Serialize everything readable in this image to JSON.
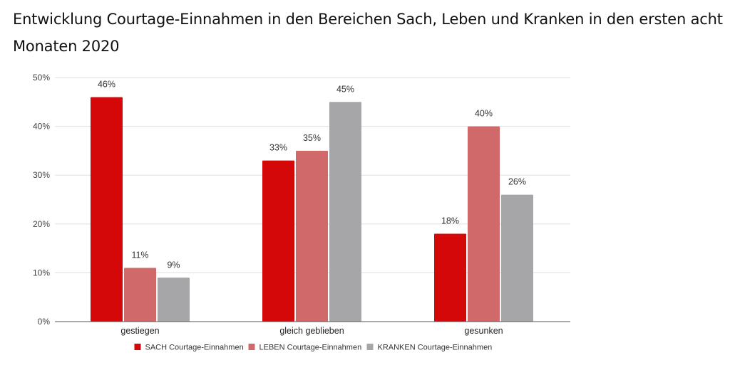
{
  "chart_data": {
    "type": "bar",
    "title": "Entwicklung Courtage-Einnahmen in den Bereichen Sach, Leben und Kranken in den ersten acht Monaten 2020",
    "xlabel": "",
    "ylabel": "",
    "categories": [
      "gestiegen",
      "gleich geblieben",
      "gesunken"
    ],
    "series": [
      {
        "name": "SACH Courtage-Einnahmen",
        "color": "#d40808",
        "values": [
          46,
          33,
          18
        ],
        "labels": [
          "46%",
          "33%",
          "18%"
        ]
      },
      {
        "name": "LEBEN Courtage-Einnahmen",
        "color": "#d06a6a",
        "values": [
          11,
          35,
          40
        ],
        "labels": [
          "11%",
          "35%",
          "40%"
        ]
      },
      {
        "name": "KRANKEN Courtage-Einnahmen",
        "color": "#a6a6a8",
        "values": [
          9,
          45,
          26
        ],
        "labels": [
          "9%",
          "45%",
          "26%"
        ]
      }
    ],
    "ylim": [
      0,
      50
    ],
    "yticks": [
      0,
      10,
      20,
      30,
      40,
      50
    ],
    "ytick_labels": [
      "0%",
      "10%",
      "20%",
      "30%",
      "40%",
      "50%"
    ],
    "grid": true,
    "legend_position": "bottom-center"
  }
}
